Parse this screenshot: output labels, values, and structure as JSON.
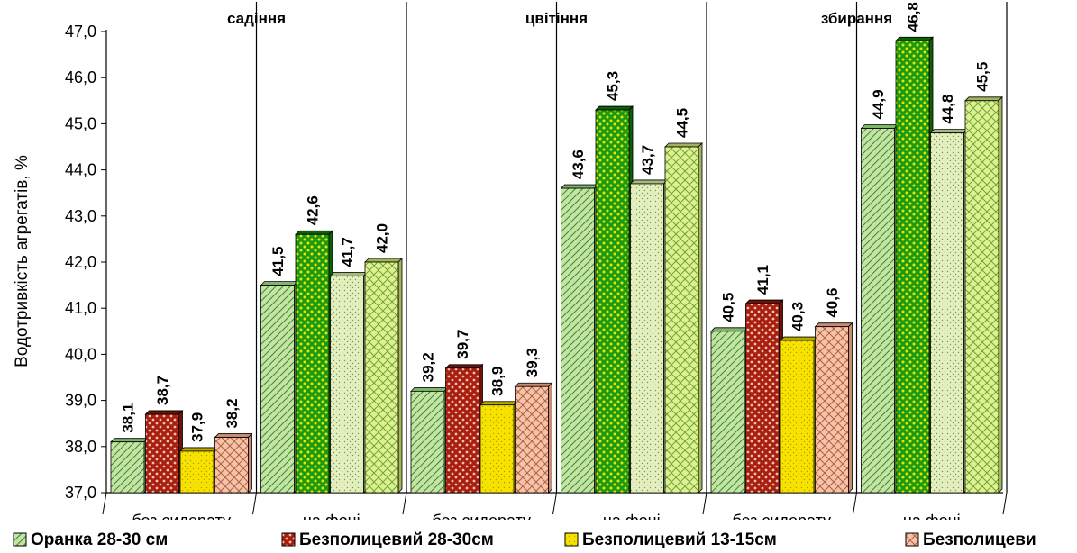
{
  "chart_data": {
    "type": "bar",
    "title": "",
    "ylabel": "Водотривкість агрегатів, %",
    "xlabel": "",
    "ylim": [
      37.0,
      47.0
    ],
    "yticks": [
      "37,0",
      "38,0",
      "39,0",
      "40,0",
      "41,0",
      "42,0",
      "43,0",
      "44,0",
      "45,0",
      "46,0",
      "47,0"
    ],
    "grid": false,
    "legend_position": "bottom",
    "phases": [
      "садіння",
      "цвітіння",
      "збирання"
    ],
    "categories": [
      "без сидерату",
      "на фоні",
      "без сидерату",
      "на фоні",
      "без сидерату",
      "на фоні"
    ],
    "series": [
      {
        "name": "Оранка  28-30 см",
        "values": [
          38.1,
          41.5,
          39.2,
          43.6,
          40.5,
          44.9
        ],
        "labels": [
          "38,1",
          "41,5",
          "39,2",
          "43,6",
          "40,5",
          "44,9"
        ]
      },
      {
        "name": "Безполицевий 28-30см",
        "values": [
          38.7,
          42.6,
          39.7,
          45.3,
          41.1,
          46.8
        ],
        "labels": [
          "38,7",
          "42,6",
          "39,7",
          "45,3",
          "41,1",
          "46,8"
        ]
      },
      {
        "name": "Безполицевий 13-15см",
        "values": [
          37.9,
          41.7,
          38.9,
          43.7,
          40.3,
          44.8
        ],
        "labels": [
          "37,9",
          "41,7",
          "38,9",
          "43,7",
          "40,3",
          "44,8"
        ]
      },
      {
        "name": "Безполицеви",
        "values": [
          38.2,
          42.0,
          39.3,
          44.5,
          40.6,
          45.5
        ],
        "labels": [
          "38,2",
          "42,0",
          "39,3",
          "44,5",
          "40,6",
          "45,5"
        ]
      }
    ],
    "colors": {
      "red_series_group": [
        "#c4e3a6",
        "#a81f10",
        "#f7e300",
        "#f4c3ac"
      ],
      "green_series_group": [
        "#c4e3a6",
        "#1d9a14",
        "#e3efbf",
        "#e0ef92"
      ]
    }
  }
}
